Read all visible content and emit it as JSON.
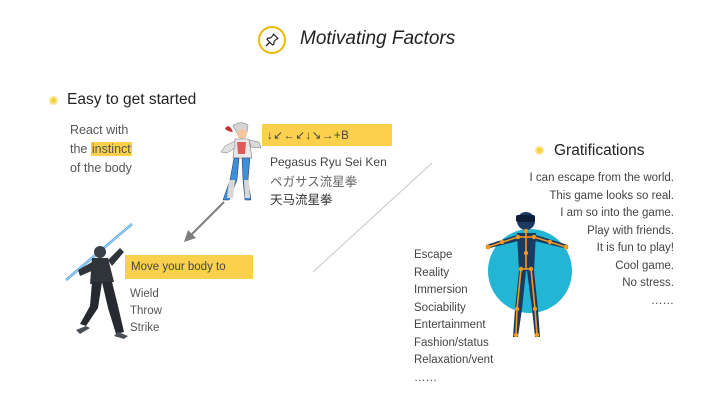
{
  "header": {
    "title": "Motivating Factors",
    "icon": "pushpin-icon",
    "accent_color": "#f2b705"
  },
  "easy": {
    "heading": "Easy to get started",
    "instinct_line1": "React with",
    "instinct_line2_pre": "the ",
    "instinct_highlight": "instinct",
    "instinct_line3": "of the body",
    "command": "↓↙←↙↓↘→+B",
    "move_name_en": "Pegasus Ryu Sei Ken",
    "move_name_jp": "ペガサス流星拳",
    "move_name_cn": "天马流星拳",
    "body_label": "Move your body to",
    "actions": [
      "Wield",
      "Throw",
      "Strike"
    ],
    "highlight_color": "#fbd04c"
  },
  "gratifications": {
    "heading": "Gratifications",
    "factors": [
      "Escape",
      "Reality",
      "Immersion",
      "Sociability",
      "Entertainment",
      "Fashion/status",
      "Relaxation/vent",
      "……"
    ],
    "quotes": [
      "I can escape from the world.",
      "This game looks so real.",
      "I am so into the game.",
      "Play with friends.",
      "It is fun to play!",
      "Cool game.",
      "No stress.",
      "……"
    ],
    "circle_color": "#22b5d4",
    "figure_color": "#1b3a63",
    "joint_color": "#f39a1e"
  }
}
